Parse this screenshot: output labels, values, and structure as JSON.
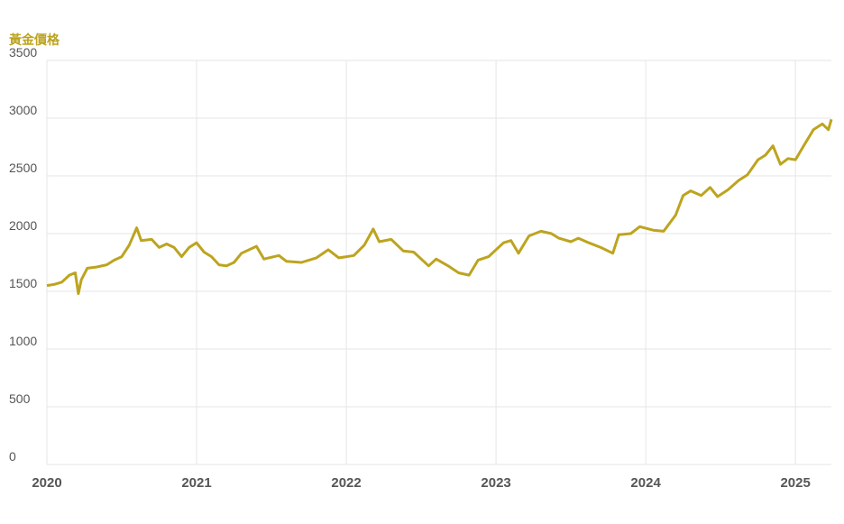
{
  "chart_data": {
    "type": "line",
    "y_label": "黃金價格",
    "color": "#bda41f",
    "grid": true,
    "x": [
      2020.0,
      2020.05,
      2020.1,
      2020.15,
      2020.19,
      2020.21,
      2020.23,
      2020.27,
      2020.33,
      2020.4,
      2020.45,
      2020.5,
      2020.55,
      2020.6,
      2020.63,
      2020.7,
      2020.75,
      2020.8,
      2020.85,
      2020.9,
      2020.95,
      2021.0,
      2021.05,
      2021.1,
      2021.15,
      2021.2,
      2021.25,
      2021.3,
      2021.4,
      2021.45,
      2021.55,
      2021.6,
      2021.7,
      2021.8,
      2021.88,
      2021.95,
      2022.05,
      2022.12,
      2022.18,
      2022.22,
      2022.3,
      2022.38,
      2022.45,
      2022.55,
      2022.6,
      2022.68,
      2022.75,
      2022.82,
      2022.88,
      2022.95,
      2023.05,
      2023.1,
      2023.15,
      2023.22,
      2023.3,
      2023.37,
      2023.42,
      2023.5,
      2023.55,
      2023.62,
      2023.7,
      2023.78,
      2023.82,
      2023.9,
      2023.96,
      2024.05,
      2024.12,
      2024.2,
      2024.25,
      2024.3,
      2024.37,
      2024.43,
      2024.48,
      2024.55,
      2024.62,
      2024.68,
      2024.75,
      2024.8,
      2024.85,
      2024.9,
      2024.95,
      2025.0,
      2025.05,
      2025.12,
      2025.18,
      2025.22,
      2025.24
    ],
    "values": [
      1550,
      1560,
      1580,
      1640,
      1660,
      1480,
      1600,
      1700,
      1710,
      1730,
      1770,
      1800,
      1900,
      2050,
      1940,
      1950,
      1880,
      1910,
      1880,
      1800,
      1880,
      1920,
      1840,
      1800,
      1730,
      1720,
      1750,
      1830,
      1890,
      1780,
      1810,
      1760,
      1750,
      1790,
      1860,
      1790,
      1810,
      1900,
      2040,
      1930,
      1950,
      1850,
      1840,
      1720,
      1780,
      1720,
      1660,
      1640,
      1770,
      1800,
      1920,
      1940,
      1830,
      1980,
      2020,
      2000,
      1960,
      1930,
      1960,
      1920,
      1880,
      1830,
      1990,
      2000,
      2060,
      2030,
      2020,
      2160,
      2330,
      2370,
      2330,
      2400,
      2320,
      2380,
      2460,
      2510,
      2640,
      2680,
      2760,
      2600,
      2650,
      2640,
      2750,
      2900,
      2950,
      2900,
      2990
    ],
    "xlim": [
      2020,
      2025.24
    ],
    "xticks": [
      2020,
      2021,
      2022,
      2023,
      2024,
      2025
    ],
    "ylim": [
      0,
      3500
    ],
    "yticks": [
      0,
      500,
      1000,
      1500,
      2000,
      2500,
      3000,
      3500
    ]
  }
}
